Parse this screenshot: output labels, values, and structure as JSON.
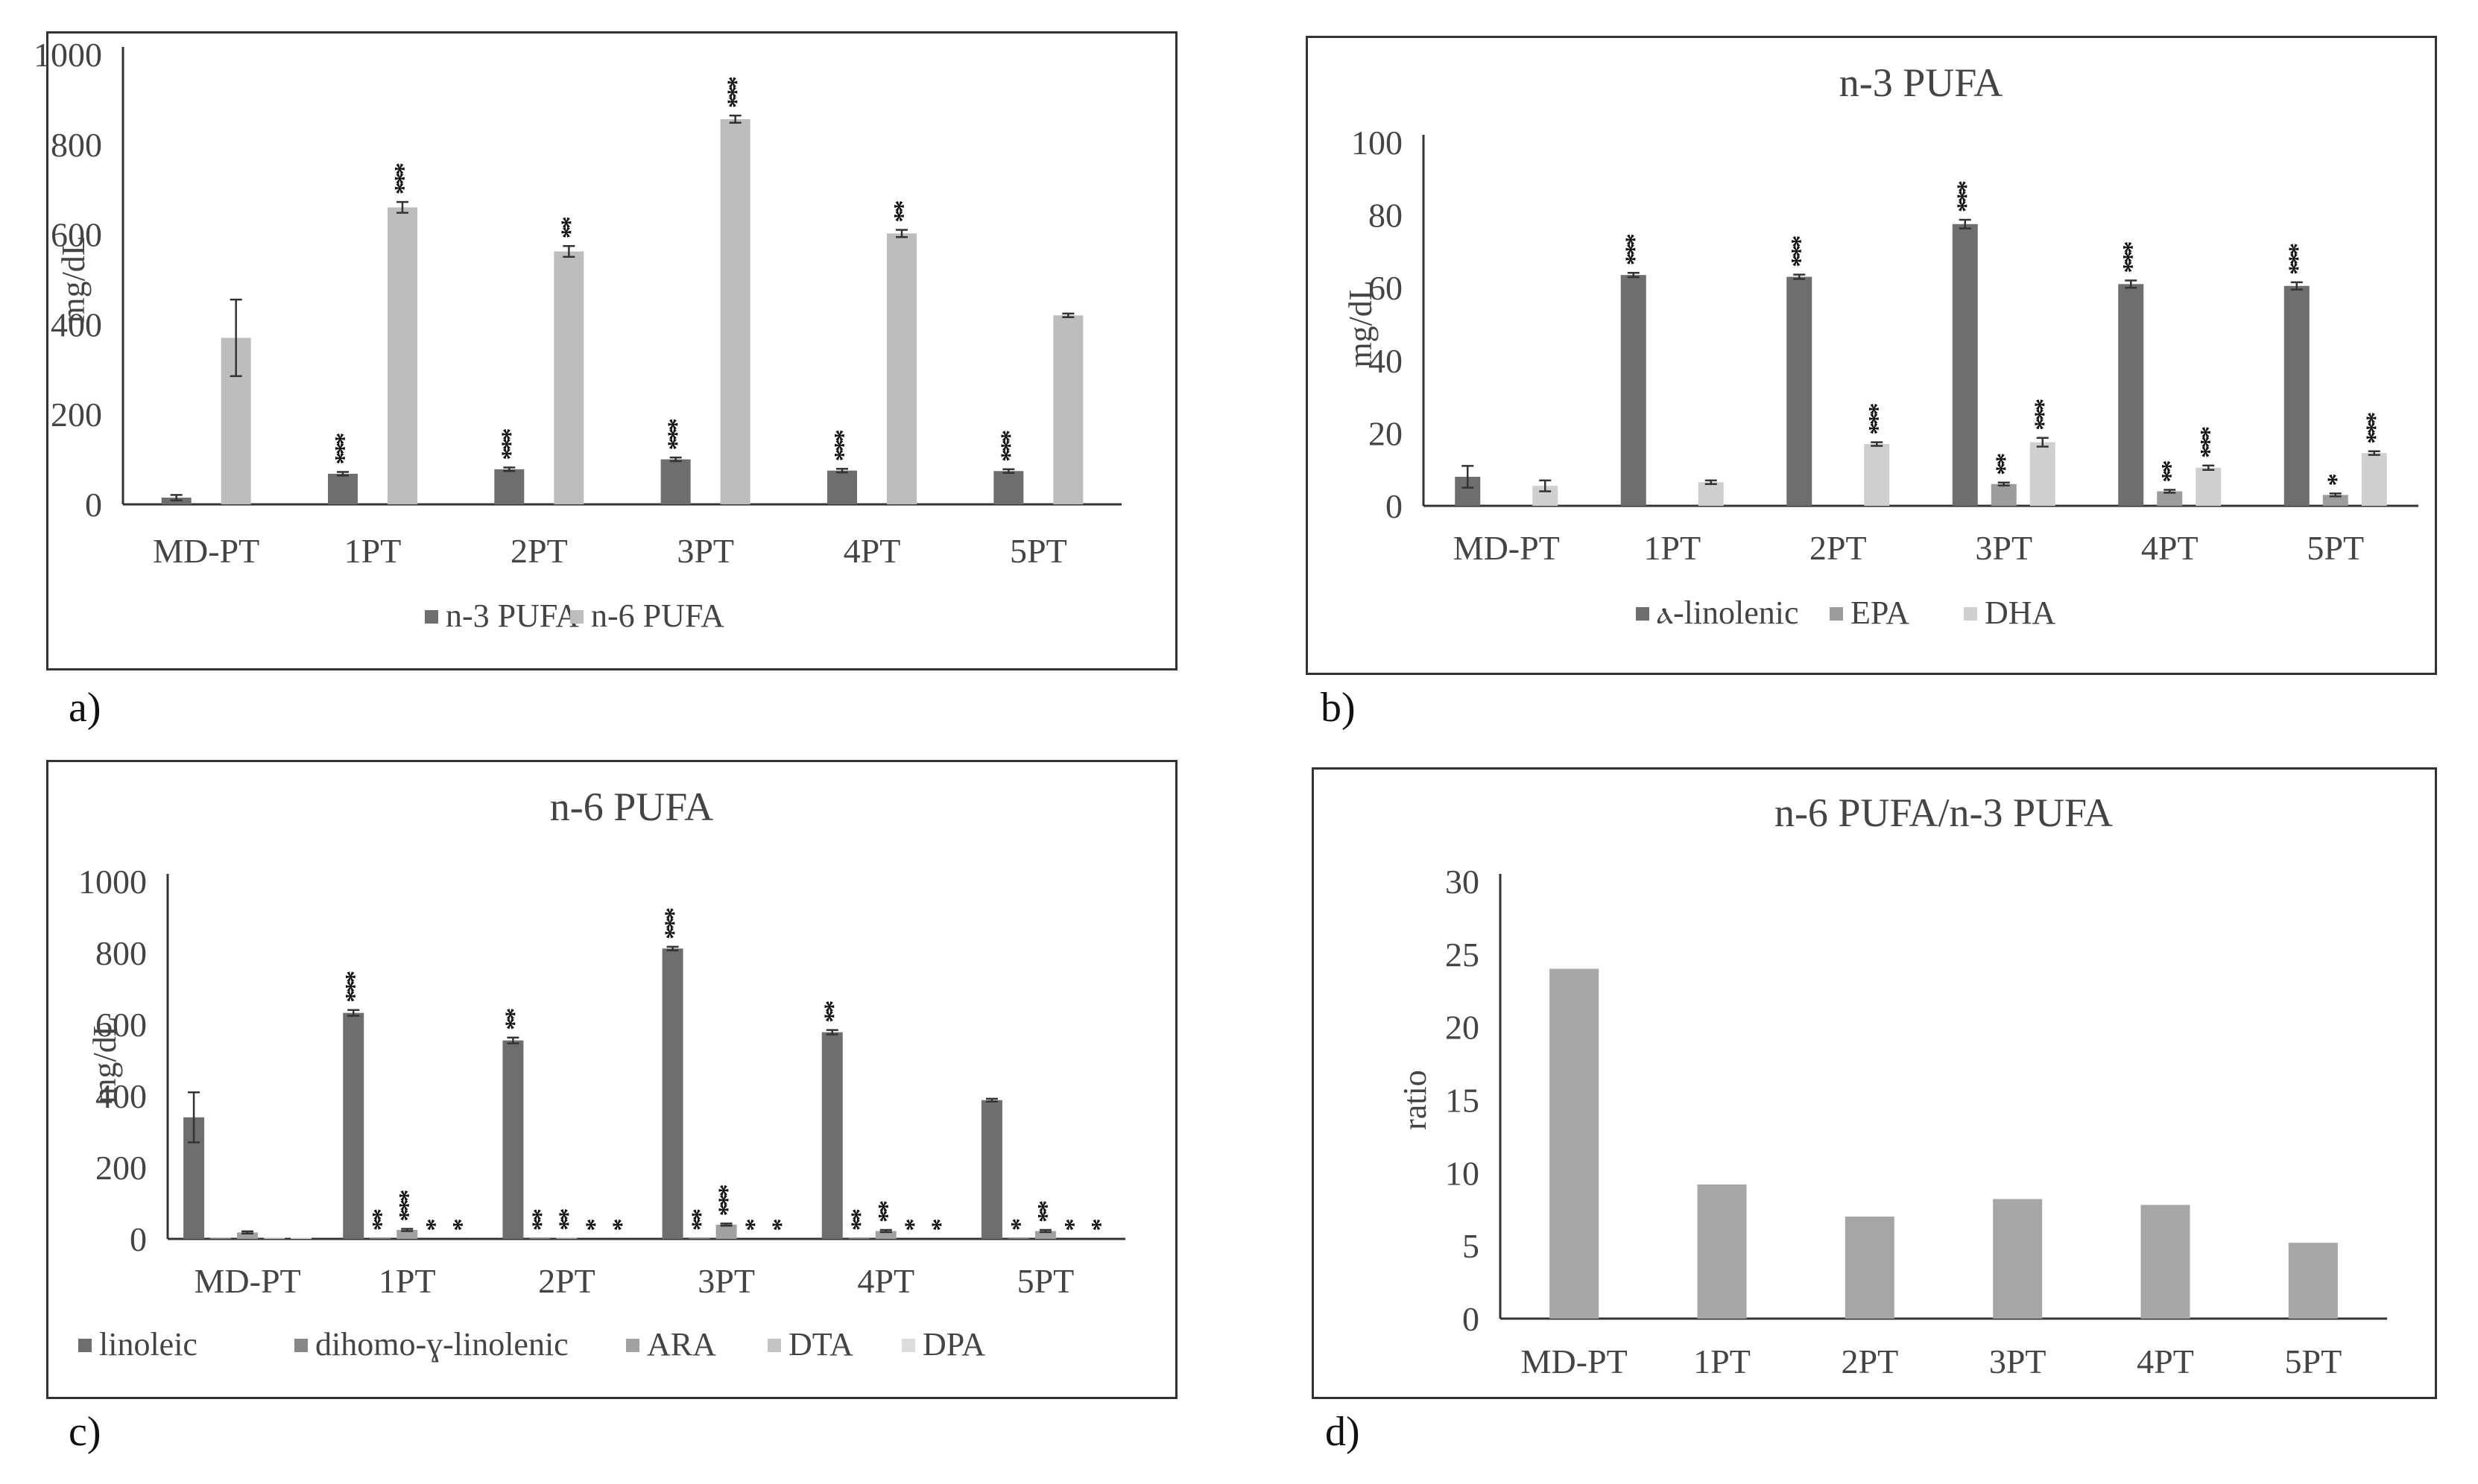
{
  "panel_labels": [
    "a)",
    "b)",
    "c)",
    "d)"
  ],
  "colors": {
    "dark": "#6e6e6e",
    "mid": "#8c8c8c",
    "light": "#b9b9b9",
    "lighter": "#cfcfcf",
    "lightest": "#dcdcdc",
    "ratio_bar": "#a6a6a6",
    "axis": "#333333",
    "text": "#444444"
  },
  "chart_data": [
    {
      "id": "a",
      "type": "bar",
      "title": "",
      "xlabel": "",
      "ylabel": "mg/dL",
      "ylim": [
        0,
        1000
      ],
      "yticks": [
        0,
        200,
        400,
        600,
        800,
        1000
      ],
      "categories": [
        "MD-PT",
        "1PT",
        "2PT",
        "3PT",
        "4PT",
        "5PT"
      ],
      "legend_position": "bottom",
      "series": [
        {
          "name": "n-3 PUFA",
          "color": "#6e6e6e",
          "values": [
            15,
            68,
            78,
            100,
            75,
            74
          ],
          "errors": [
            6,
            4,
            4,
            4,
            4,
            4
          ],
          "significance": [
            "",
            "***",
            "***",
            "***",
            "***",
            "***"
          ]
        },
        {
          "name": "n-6 PUFA",
          "color": "#bdbdbd",
          "values": [
            370,
            660,
            562,
            856,
            602,
            420
          ],
          "errors": [
            85,
            12,
            12,
            8,
            8,
            4
          ],
          "significance": [
            "",
            "***",
            "**",
            "***",
            "**",
            ""
          ]
        }
      ]
    },
    {
      "id": "b",
      "type": "bar",
      "title": "n-3 PUFA",
      "xlabel": "",
      "ylabel": "mg/dL",
      "ylim": [
        0,
        100
      ],
      "yticks": [
        0,
        20,
        40,
        60,
        80,
        100
      ],
      "categories": [
        "MD-PT",
        "1PT",
        "2PT",
        "3PT",
        "4PT",
        "5PT"
      ],
      "legend_position": "bottom",
      "series": [
        {
          "name": "ⲁ-linolenic",
          "color": "#6e6e6e",
          "values": [
            8,
            63.5,
            63,
            77.5,
            61,
            60.5
          ],
          "errors": [
            3,
            0.6,
            0.6,
            1.2,
            1,
            1
          ],
          "significance": [
            "",
            "***",
            "***",
            "***",
            "***",
            "***"
          ]
        },
        {
          "name": "EPA",
          "color": "#9c9c9c",
          "values": [
            0,
            0,
            0,
            6,
            4,
            3
          ],
          "errors": [
            0,
            0,
            0,
            0.4,
            0.4,
            0.4
          ],
          "significance": [
            "",
            "",
            "",
            "**",
            "**",
            "*"
          ]
        },
        {
          "name": "DHA",
          "color": "#cfcfcf",
          "values": [
            5.5,
            6.5,
            17,
            17.5,
            10.5,
            14.5
          ],
          "errors": [
            1.5,
            0.5,
            0.5,
            1.2,
            0.6,
            0.5
          ],
          "significance": [
            "",
            "",
            "***",
            "***",
            "***",
            "***"
          ]
        }
      ]
    },
    {
      "id": "c",
      "type": "bar",
      "title": "n-6 PUFA",
      "xlabel": "",
      "ylabel": "mg/dL",
      "ylim": [
        0,
        1000
      ],
      "yticks": [
        0,
        200,
        400,
        600,
        800,
        1000
      ],
      "categories": [
        "MD-PT",
        "1PT",
        "2PT",
        "3PT",
        "4PT",
        "5PT"
      ],
      "legend_position": "bottom",
      "series": [
        {
          "name": "linoleic",
          "color": "#6e6e6e",
          "values": [
            340,
            632,
            555,
            812,
            578,
            388
          ],
          "errors": [
            70,
            8,
            8,
            5,
            6,
            4
          ],
          "significance": [
            "",
            "***",
            "**",
            "***",
            "**",
            ""
          ]
        },
        {
          "name": "dihomo-ɣ-linolenic",
          "color": "#878787",
          "values": [
            3,
            2,
            2,
            2,
            2,
            2
          ],
          "errors": [
            0,
            0,
            0,
            0,
            0,
            0
          ],
          "significance": [
            "",
            "**",
            "**",
            "**",
            "**",
            "*"
          ]
        },
        {
          "name": "ARA",
          "color": "#a1a1a1",
          "values": [
            18,
            25,
            3,
            40,
            22,
            22
          ],
          "errors": [
            3,
            3,
            0,
            3,
            3,
            3
          ],
          "significance": [
            "",
            "***",
            "**",
            "***",
            "**",
            "**"
          ]
        },
        {
          "name": "DTA",
          "color": "#c4c4c4",
          "values": [
            3,
            1,
            1,
            1,
            1,
            1
          ],
          "errors": [
            0,
            0,
            0,
            0,
            0,
            0
          ],
          "significance": [
            "",
            "*",
            "*",
            "*",
            "*",
            "*"
          ]
        },
        {
          "name": "DPA",
          "color": "#dcdcdc",
          "values": [
            3,
            1,
            1,
            1,
            1,
            1
          ],
          "errors": [
            0,
            0,
            0,
            0,
            0,
            0
          ],
          "significance": [
            "",
            "*",
            "*",
            "*",
            "*",
            "*"
          ]
        }
      ]
    },
    {
      "id": "d",
      "type": "bar",
      "title": "n-6 PUFA/n-3 PUFA",
      "xlabel": "",
      "ylabel": "ratio",
      "ylim": [
        0,
        30
      ],
      "yticks": [
        0,
        5,
        10,
        15,
        20,
        25,
        30
      ],
      "categories": [
        "MD-PT",
        "1PT",
        "2PT",
        "3PT",
        "4PT",
        "5PT"
      ],
      "legend_position": "none",
      "series": [
        {
          "name": "n-6 PUFA/n-3 PUFA",
          "color": "#a6a6a6",
          "values": [
            24,
            9.2,
            7,
            8.2,
            7.8,
            5.2
          ],
          "errors": [
            0,
            0,
            0,
            0,
            0,
            0
          ],
          "significance": [
            "",
            "",
            "",
            "",
            "",
            ""
          ]
        }
      ]
    }
  ]
}
